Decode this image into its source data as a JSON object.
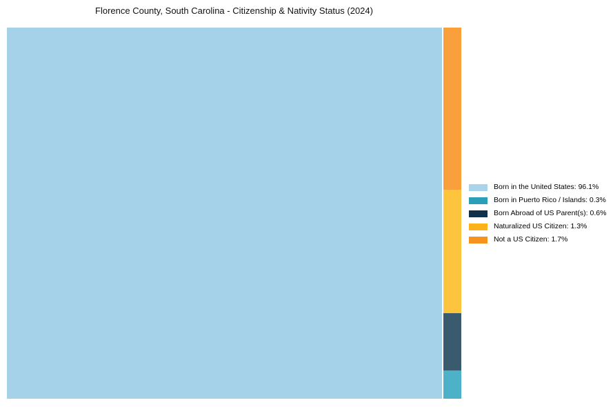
{
  "page": {
    "background": "#ffffff"
  },
  "chart_data": {
    "type": "treemap",
    "title": "Florence County, South Carolina - Citizenship & Nativity Status (2024)",
    "legend_position": "right",
    "total_percent": 100,
    "categories": [
      {
        "name": "born-in-us",
        "label": "Born in the United States",
        "value": 96.1,
        "legend_label": "Born in the United States: 96.1%",
        "legend_color": "#a8d3e9",
        "chart_color": "#a5d2e8"
      },
      {
        "name": "born-in-puerto-rico-islands",
        "label": "Born in Puerto Rico / Islands",
        "value": 0.3,
        "legend_label": "Born in Puerto Rico / Islands: 0.3%",
        "legend_color": "#2b9eb8",
        "chart_color": "#4db2c8"
      },
      {
        "name": "born-abroad-us-parents",
        "label": "Born Abroad of US Parent(s)",
        "value": 0.6,
        "legend_label": "Born Abroad of US Parent(s): 0.6%",
        "legend_color": "#11304a",
        "chart_color": "#3a5a6e"
      },
      {
        "name": "naturalized-us-citizen",
        "label": "Naturalized US Citizen",
        "value": 1.3,
        "legend_label": "Naturalized US Citizen: 1.3%",
        "legend_color": "#fcb31b",
        "chart_color": "#fdc53e"
      },
      {
        "name": "not-us-citizen",
        "label": "Not a US Citizen",
        "value": 1.7,
        "legend_label": "Not a US Citizen: 1.7%",
        "legend_color": "#f6921e",
        "chart_color": "#f9a03c"
      }
    ],
    "layout": {
      "main_category_index": 0,
      "minor_stack_order_top_to_bottom": [
        "not-us-citizen",
        "naturalized-us-citizen",
        "born-abroad-us-parents",
        "born-in-puerto-rico-islands"
      ]
    }
  }
}
